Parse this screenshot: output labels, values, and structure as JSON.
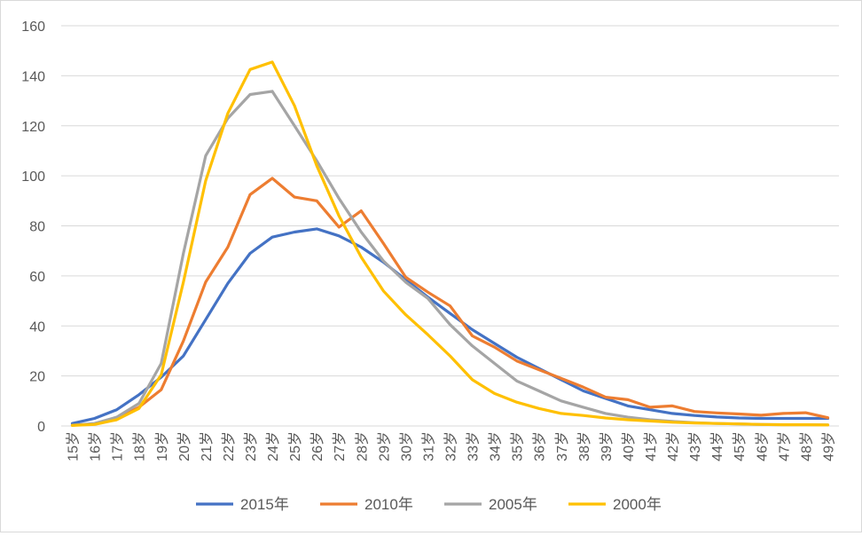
{
  "chart_data": {
    "type": "line",
    "title": "",
    "xlabel": "",
    "ylabel": "",
    "ylim": [
      0,
      160
    ],
    "yticks": [
      0,
      20,
      40,
      60,
      80,
      100,
      120,
      140,
      160
    ],
    "grid": true,
    "legend_position": "bottom",
    "categories": [
      "15岁",
      "16岁",
      "17岁",
      "18岁",
      "19岁",
      "20岁",
      "21岁",
      "22岁",
      "23岁",
      "24岁",
      "25岁",
      "26岁",
      "27岁",
      "28岁",
      "29岁",
      "30岁",
      "31岁",
      "32岁",
      "33岁",
      "34岁",
      "35岁",
      "36岁",
      "37岁",
      "38岁",
      "39岁",
      "40岁",
      "41岁",
      "42岁",
      "43岁",
      "44岁",
      "45岁",
      "46岁",
      "47岁",
      "48岁",
      "49岁"
    ],
    "series": [
      {
        "name": "2015年",
        "color": "#4472c4",
        "values": [
          1.0,
          3.0,
          6.5,
          12.5,
          19.5,
          28.0,
          42.5,
          57.0,
          69.0,
          75.5,
          77.5,
          78.8,
          76.0,
          71.5,
          65.5,
          58.5,
          51.5,
          45.0,
          38.5,
          33.0,
          27.5,
          23.0,
          18.5,
          14.0,
          11.0,
          8.0,
          6.5,
          5.0,
          4.2,
          3.6,
          3.2,
          3.0,
          3.0,
          3.0,
          3.0
        ]
      },
      {
        "name": "2010年",
        "color": "#ed7d31",
        "values": [
          0.3,
          0.8,
          3.0,
          7.5,
          14.5,
          34.0,
          57.5,
          71.5,
          92.5,
          99.0,
          91.5,
          90.0,
          79.5,
          86.0,
          73.0,
          59.5,
          53.5,
          48.0,
          36.0,
          31.5,
          26.0,
          22.5,
          19.0,
          15.5,
          11.5,
          10.5,
          7.5,
          8.0,
          5.8,
          5.2,
          4.8,
          4.3,
          5.0,
          5.3,
          3.3
        ]
      },
      {
        "name": "2005年",
        "color": "#a5a5a5",
        "values": [
          0.3,
          1.0,
          3.5,
          9.0,
          25.0,
          69.0,
          108.0,
          123.0,
          132.5,
          133.8,
          120.0,
          106.0,
          91.0,
          77.5,
          66.0,
          57.5,
          51.0,
          40.5,
          32.0,
          25.0,
          18.0,
          14.0,
          10.0,
          7.5,
          5.0,
          3.5,
          2.5,
          1.8,
          1.3,
          1.0,
          0.8,
          0.6,
          0.5,
          0.5,
          0.4
        ]
      },
      {
        "name": "2000年",
        "color": "#ffc000",
        "values": [
          0.2,
          0.6,
          2.5,
          7.0,
          20.5,
          57.5,
          98.0,
          125.0,
          142.5,
          145.5,
          128.0,
          104.0,
          84.0,
          67.5,
          54.0,
          44.5,
          36.5,
          28.0,
          18.5,
          13.0,
          9.5,
          7.0,
          5.0,
          4.2,
          3.2,
          2.5,
          2.0,
          1.5,
          1.2,
          1.0,
          0.8,
          0.6,
          0.5,
          0.5,
          0.4
        ]
      }
    ]
  }
}
